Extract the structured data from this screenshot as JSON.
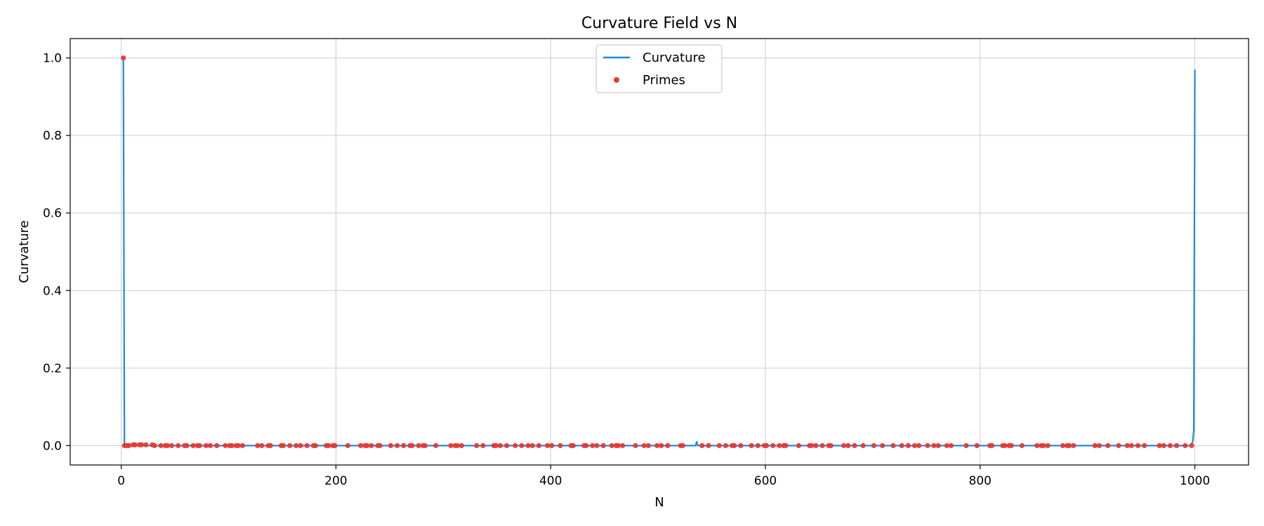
{
  "chart_data": {
    "type": "line",
    "title": "Curvature Field vs N",
    "xlabel": "N",
    "ylabel": "Curvature",
    "xlim": [
      -47.5,
      1050
    ],
    "ylim": [
      -0.05,
      1.05
    ],
    "xticks": [
      0,
      200,
      400,
      600,
      800,
      1000
    ],
    "yticks": [
      0.0,
      0.2,
      0.4,
      0.6,
      0.8,
      1.0
    ],
    "xtick_labels": [
      "0",
      "200",
      "400",
      "600",
      "800",
      "1000"
    ],
    "ytick_labels": [
      "0.0",
      "0.2",
      "0.4",
      "0.6",
      "0.8",
      "1.0"
    ],
    "grid": true,
    "legend_position": "top-center",
    "series": [
      {
        "name": "Curvature",
        "kind": "line",
        "color": "#1e88e5",
        "points": [
          [
            2,
            1.0
          ],
          [
            3,
            0.0
          ],
          [
            535,
            0.0
          ],
          [
            536,
            0.01
          ],
          [
            537,
            0.0
          ],
          [
            995,
            0.0
          ],
          [
            997,
            0.005
          ],
          [
            998,
            0.01
          ],
          [
            999,
            0.04
          ],
          [
            1000,
            0.97
          ]
        ]
      },
      {
        "name": "Primes",
        "kind": "scatter",
        "color": "#e53935",
        "x": [
          2,
          3,
          5,
          7,
          11,
          13,
          17,
          19,
          23,
          29,
          31,
          37,
          41,
          43,
          47,
          53,
          59,
          61,
          67,
          71,
          73,
          79,
          83,
          89,
          97,
          101,
          103,
          107,
          109,
          113,
          127,
          131,
          137,
          139,
          149,
          151,
          157,
          163,
          167,
          173,
          179,
          181,
          191,
          193,
          197,
          199,
          211,
          223,
          227,
          229,
          233,
          239,
          241,
          251,
          257,
          263,
          269,
          271,
          277,
          281,
          283,
          293,
          307,
          311,
          313,
          317,
          331,
          337,
          347,
          349,
          353,
          359,
          367,
          373,
          379,
          383,
          389,
          397,
          401,
          409,
          419,
          421,
          431,
          433,
          439,
          443,
          449,
          457,
          461,
          463,
          467,
          479,
          487,
          491,
          499,
          503,
          509,
          521,
          523,
          541,
          547,
          557,
          563,
          569,
          571,
          577,
          587,
          593,
          599,
          601,
          607,
          613,
          617,
          619,
          631,
          641,
          643,
          647,
          653,
          659,
          661,
          673,
          677,
          683,
          691,
          701,
          709,
          719,
          727,
          733,
          739,
          743,
          751,
          757,
          761,
          769,
          773,
          787,
          797,
          809,
          811,
          821,
          823,
          827,
          829,
          839,
          853,
          857,
          859,
          863,
          877,
          881,
          883,
          887,
          907,
          911,
          919,
          929,
          937,
          941,
          947,
          953,
          967,
          971,
          977,
          983,
          991,
          997
        ],
        "y_default": 0.0,
        "y_overrides": {
          "2": 1.0,
          "11": 0.002,
          "13": 0.002,
          "17": 0.002,
          "19": 0.002,
          "23": 0.002,
          "29": 0.002
        }
      }
    ]
  }
}
